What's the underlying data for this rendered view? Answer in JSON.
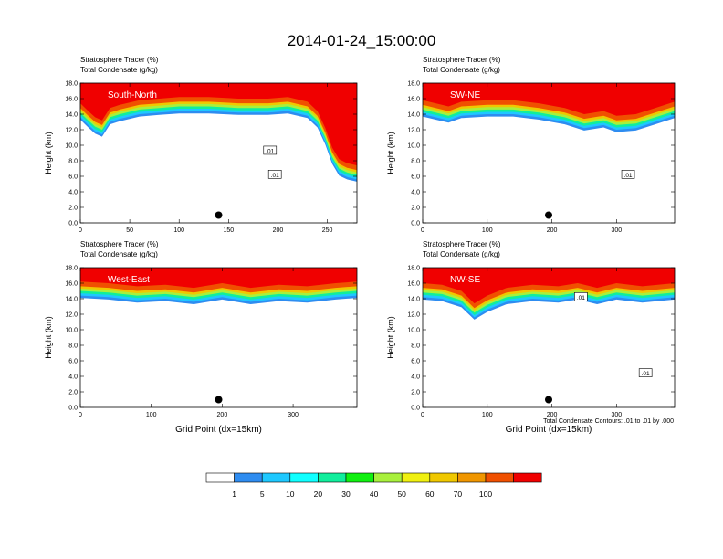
{
  "figure": {
    "title": "2014-01-24_15:00:00",
    "footnote": "Total Condensate Contours: .01 to .01 by .000"
  },
  "colorbar": {
    "labels": [
      "1",
      "5",
      "10",
      "20",
      "30",
      "40",
      "50",
      "60",
      "70",
      "100"
    ],
    "colors": [
      "#ffffff",
      "#2e8cf0",
      "#1ec8ff",
      "#10ffff",
      "#10ee9c",
      "#10f010",
      "#a8f03c",
      "#f0f010",
      "#f0c800",
      "#f09600",
      "#f05000",
      "#f00000"
    ]
  },
  "chart_data": [
    {
      "type": "heatmap",
      "panel_label": "South-North",
      "title_line1": "Stratosphere Tracer   (%)",
      "title_line2": "Total Condensate   (g/kg)",
      "ylabel": "Height (km)",
      "xlabel": "",
      "ylim": [
        0,
        18
      ],
      "yticks": [
        "0.0",
        "2.0",
        "4.0",
        "6.0",
        "8.0",
        "10.0",
        "12.0",
        "14.0",
        "16.0",
        "18.0"
      ],
      "xlim": [
        0,
        280
      ],
      "xticks": [
        0,
        50,
        100,
        150,
        200,
        250
      ],
      "marker": {
        "x": 140,
        "y": 1.0
      },
      "contour_labels": [
        {
          "text": ".01",
          "x": 192,
          "y": 9.3
        },
        {
          "text": ".01",
          "x": 197,
          "y": 6.2
        }
      ],
      "tropopause": [
        [
          0,
          14.2
        ],
        [
          8,
          13.2
        ],
        [
          15,
          12.4
        ],
        [
          22,
          12.0
        ],
        [
          30,
          13.6
        ],
        [
          40,
          14.0
        ],
        [
          60,
          14.6
        ],
        [
          80,
          14.8
        ],
        [
          100,
          15.0
        ],
        [
          130,
          15.0
        ],
        [
          160,
          14.8
        ],
        [
          190,
          14.8
        ],
        [
          210,
          15.0
        ],
        [
          230,
          14.4
        ],
        [
          240,
          13.2
        ],
        [
          248,
          11.0
        ],
        [
          255,
          8.5
        ],
        [
          262,
          7.0
        ],
        [
          270,
          6.5
        ],
        [
          280,
          6.2
        ]
      ]
    },
    {
      "type": "heatmap",
      "panel_label": "SW-NE",
      "title_line1": "Stratosphere Tracer   (%)",
      "title_line2": "Total Condensate   (g/kg)",
      "ylabel": "Height (km)",
      "xlabel": "",
      "ylim": [
        0,
        18
      ],
      "yticks": [
        "0.0",
        "2.0",
        "4.0",
        "6.0",
        "8.0",
        "10.0",
        "12.0",
        "14.0",
        "16.0",
        "18.0"
      ],
      "xlim": [
        0,
        390
      ],
      "xticks": [
        0,
        100,
        200,
        300
      ],
      "marker": {
        "x": 195,
        "y": 1.0
      },
      "contour_labels": [
        {
          "text": ".01",
          "x": 318,
          "y": 6.2
        }
      ],
      "tropopause": [
        [
          0,
          14.6
        ],
        [
          20,
          14.2
        ],
        [
          40,
          13.8
        ],
        [
          60,
          14.4
        ],
        [
          100,
          14.6
        ],
        [
          140,
          14.6
        ],
        [
          180,
          14.2
        ],
        [
          220,
          13.6
        ],
        [
          250,
          12.8
        ],
        [
          280,
          13.2
        ],
        [
          300,
          12.6
        ],
        [
          330,
          12.8
        ],
        [
          360,
          13.6
        ],
        [
          390,
          14.4
        ]
      ]
    },
    {
      "type": "heatmap",
      "panel_label": "West-East",
      "title_line1": "Stratosphere Tracer   (%)",
      "title_line2": "Total Condensate   (g/kg)",
      "ylabel": "Height (km)",
      "xlabel": "Grid Point (dx=15km)",
      "ylim": [
        0,
        18
      ],
      "yticks": [
        "0.0",
        "2.0",
        "4.0",
        "6.0",
        "8.0",
        "10.0",
        "12.0",
        "14.0",
        "16.0",
        "18.0"
      ],
      "xlim": [
        0,
        390
      ],
      "xticks": [
        0,
        100,
        200,
        300
      ],
      "marker": {
        "x": 195,
        "y": 1.0
      },
      "contour_labels": [],
      "tropopause": [
        [
          0,
          15.0
        ],
        [
          40,
          14.8
        ],
        [
          80,
          14.4
        ],
        [
          120,
          14.6
        ],
        [
          160,
          14.2
        ],
        [
          200,
          14.8
        ],
        [
          240,
          14.2
        ],
        [
          280,
          14.6
        ],
        [
          320,
          14.4
        ],
        [
          360,
          14.8
        ],
        [
          390,
          15.0
        ]
      ]
    },
    {
      "type": "heatmap",
      "panel_label": "NW-SE",
      "title_line1": "Stratosphere Tracer   (%)",
      "title_line2": "Total Condensate   (g/kg)",
      "ylabel": "Height (km)",
      "xlabel": "Grid Point (dx=15km)",
      "ylim": [
        0,
        18
      ],
      "yticks": [
        "0.0",
        "2.0",
        "4.0",
        "6.0",
        "8.0",
        "10.0",
        "12.0",
        "14.0",
        "16.0",
        "18.0"
      ],
      "xlim": [
        0,
        390
      ],
      "xticks": [
        0,
        100,
        200,
        300
      ],
      "marker": {
        "x": 195,
        "y": 1.0
      },
      "contour_labels": [
        {
          "text": ".01",
          "x": 245,
          "y": 14.2
        },
        {
          "text": ".01",
          "x": 345,
          "y": 4.4
        }
      ],
      "tropopause": [
        [
          0,
          14.8
        ],
        [
          30,
          14.6
        ],
        [
          60,
          13.8
        ],
        [
          80,
          12.2
        ],
        [
          100,
          13.2
        ],
        [
          130,
          14.2
        ],
        [
          170,
          14.6
        ],
        [
          210,
          14.4
        ],
        [
          240,
          14.8
        ],
        [
          270,
          14.2
        ],
        [
          300,
          14.8
        ],
        [
          340,
          14.4
        ],
        [
          390,
          14.8
        ]
      ]
    }
  ]
}
